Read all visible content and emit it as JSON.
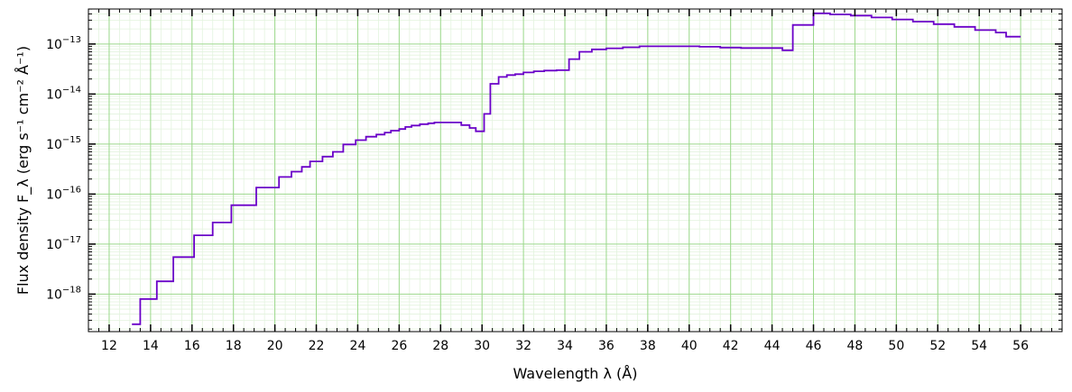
{
  "chart_data": {
    "type": "line",
    "step": true,
    "xlabel": "Wavelength λ (Å)",
    "ylabel": "Flux density F_λ (erg s⁻¹ cm⁻² Å⁻¹)",
    "xlim": [
      11,
      58
    ],
    "ylim_log10": [
      -18.75,
      -12.3
    ],
    "yscale": "log",
    "grid": true,
    "series_color": "#6a00c8",
    "grid_major_color": "#9bd88b",
    "grid_minor_color": "#e3f3de",
    "x_ticks": [
      12,
      14,
      16,
      18,
      20,
      22,
      24,
      26,
      28,
      30,
      32,
      34,
      36,
      38,
      40,
      42,
      44,
      46,
      48,
      50,
      52,
      54,
      56
    ],
    "y_ticks": [
      -18,
      -17,
      -16,
      -15,
      -14,
      -13
    ],
    "series": [
      {
        "edges": [
          13.1,
          13.5,
          14.3,
          15.1,
          16.1,
          17.0,
          17.9,
          19.1,
          20.2,
          20.8,
          21.3,
          21.7,
          22.3,
          22.8,
          23.3,
          23.9,
          24.4,
          24.9,
          25.3,
          25.6,
          26.0,
          26.3,
          26.6,
          27.0,
          27.4,
          27.7,
          28.1,
          28.5,
          29.0,
          29.4,
          29.7,
          30.1,
          30.4,
          30.8,
          31.2,
          31.6,
          32.0,
          32.5,
          33.0,
          33.6,
          34.2,
          34.7,
          35.3,
          36.0,
          36.8,
          37.6,
          38.5,
          39.5,
          40.5,
          41.5,
          42.5,
          43.5,
          44.5,
          45.0,
          45.3,
          46.0,
          46.8,
          47.8,
          48.8,
          49.8,
          50.8,
          51.8,
          52.8,
          53.8,
          54.8,
          55.3,
          56.0
        ],
        "values": [
          2.5e-19,
          8e-19,
          1.8e-18,
          5.5e-18,
          1.5e-17,
          2.7e-17,
          6e-17,
          1.35e-16,
          2.2e-16,
          2.8e-16,
          3.5e-16,
          4.5e-16,
          5.6e-16,
          7e-16,
          9.8e-16,
          1.2e-15,
          1.4e-15,
          1.55e-15,
          1.7e-15,
          1.85e-15,
          2e-15,
          2.2e-15,
          2.35e-15,
          2.5e-15,
          2.6e-15,
          2.7e-15,
          2.7e-15,
          2.7e-15,
          2.4e-15,
          2.1e-15,
          1.8e-15,
          4e-15,
          1.6e-14,
          2.2e-14,
          2.4e-14,
          2.5e-14,
          2.7e-14,
          2.85e-14,
          2.95e-14,
          3e-14,
          5e-14,
          7e-14,
          7.8e-14,
          8.2e-14,
          8.6e-14,
          9e-14,
          9e-14,
          9e-14,
          8.8e-14,
          8.5e-14,
          8.3e-14,
          8.3e-14,
          7.5e-14,
          2.4e-13,
          2.4e-13,
          4.1e-13,
          3.9e-13,
          3.7e-13,
          3.4e-13,
          3.1e-13,
          2.8e-13,
          2.5e-13,
          2.2e-13,
          1.9e-13,
          1.7e-13,
          1.4e-13
        ]
      }
    ]
  }
}
